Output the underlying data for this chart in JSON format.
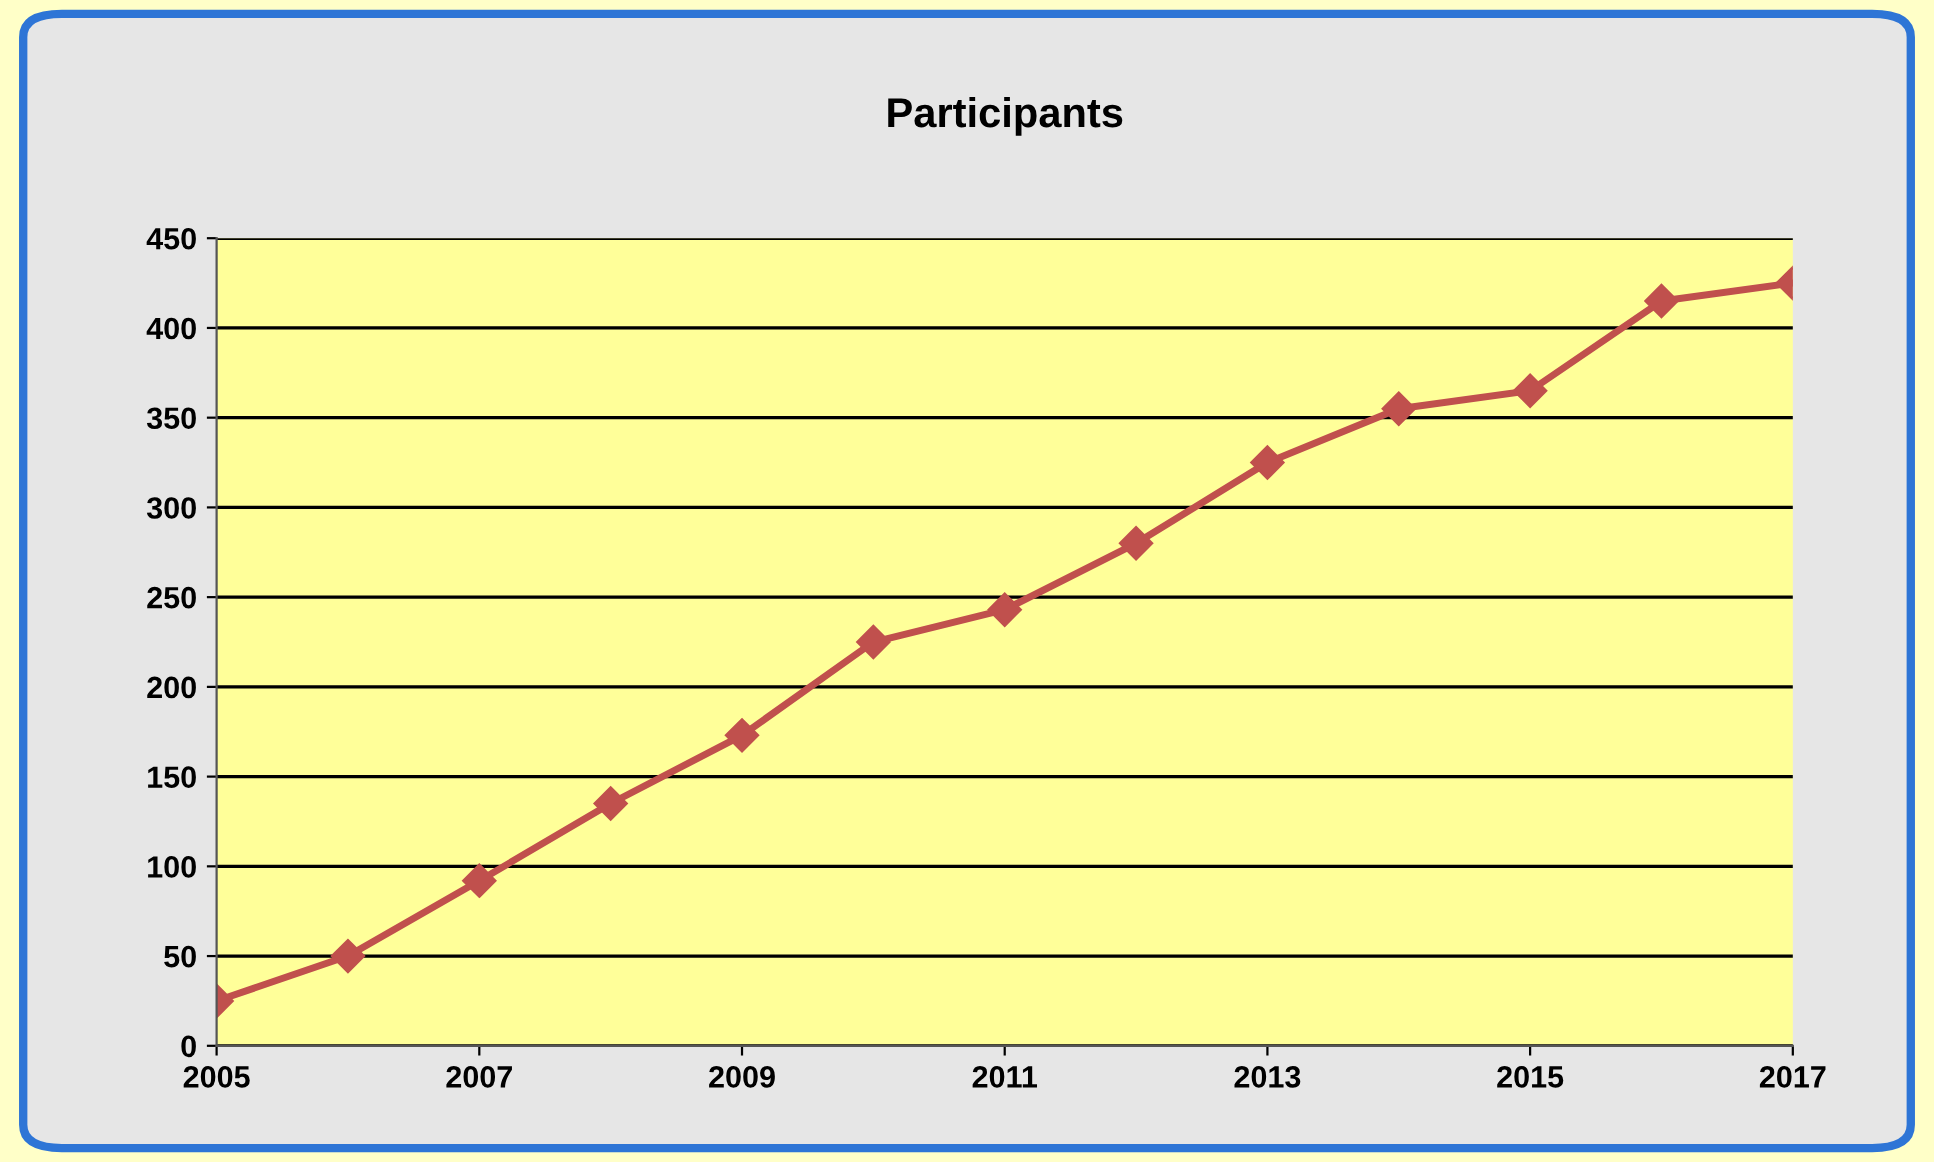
{
  "chart_data": {
    "type": "line",
    "title": "Participants",
    "x": [
      2005,
      2006,
      2007,
      2008,
      2009,
      2010,
      2011,
      2012,
      2013,
      2014,
      2015,
      2016,
      2017
    ],
    "series": [
      {
        "color": "#c0504d",
        "values": [
          25,
          50,
          92,
          135,
          173,
          225,
          243,
          280,
          325,
          355,
          365,
          415,
          425
        ]
      }
    ],
    "xlim": [
      2005,
      2017
    ],
    "xticks": [
      2005,
      2007,
      2009,
      2011,
      2013,
      2015,
      2017
    ],
    "ylim": [
      0,
      450
    ],
    "yticks": [
      0,
      50,
      100,
      150,
      200,
      250,
      300,
      350,
      400,
      450
    ],
    "grid": "y",
    "marker": "diamond",
    "line_style": "solid"
  }
}
